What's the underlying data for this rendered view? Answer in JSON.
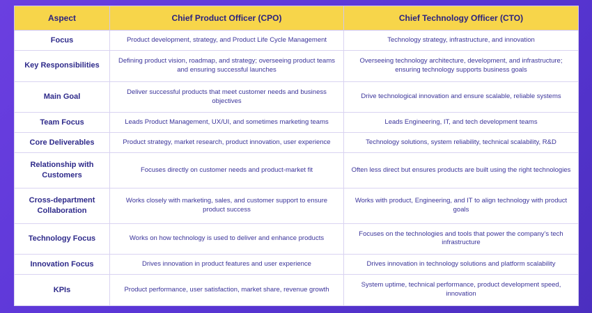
{
  "header": {
    "aspect": "Aspect",
    "cpo": "Chief Product Officer (CPO)",
    "cto": "Chief Technology Officer (CTO)"
  },
  "rows": [
    {
      "aspect": "Focus",
      "cpo": "Product development, strategy, and Product Life Cycle Management",
      "cto": "Technology strategy, infrastructure, and innovation"
    },
    {
      "aspect": "Key Responsibilities",
      "cpo": "Defining product vision, roadmap, and strategy; overseeing product teams and ensuring successful launches",
      "cto": "Overseeing technology architecture, development, and infrastructure; ensuring technology supports business goals"
    },
    {
      "aspect": "Main Goal",
      "cpo": "Deliver successful products that meet customer needs and business objectives",
      "cto": "Drive technological innovation and ensure scalable, reliable systems"
    },
    {
      "aspect": "Team Focus",
      "cpo": "Leads Product Management, UX/UI, and sometimes marketing teams",
      "cto": "Leads Engineering, IT, and tech development teams"
    },
    {
      "aspect": "Core Deliverables",
      "cpo": "Product strategy, market research, product innovation, user experience",
      "cto": "Technology solutions, system reliability, technical scalability, R&D"
    },
    {
      "aspect": "Relationship with Customers",
      "cpo": "Focuses directly on customer needs and product-market fit",
      "cto": "Often less direct but ensures products are built using the right technologies"
    },
    {
      "aspect": "Cross-department Collaboration",
      "cpo": "Works closely with marketing, sales, and customer support to ensure product success",
      "cto": "Works with product, Engineering, and IT to align technology with product goals"
    },
    {
      "aspect": "Technology Focus",
      "cpo": "Works on how technology is used to deliver and enhance products",
      "cto": "Focuses on the technologies and tools that power the company’s tech infrastructure"
    },
    {
      "aspect": "Innovation Focus",
      "cpo": "Drives innovation in product features and user experience",
      "cto": "Drives innovation in technology solutions and platform scalability"
    },
    {
      "aspect": "KPIs",
      "cpo": "Product performance, user satisfaction, market share, revenue growth",
      "cto": "System uptime, technical performance, product development speed, innovation"
    }
  ]
}
